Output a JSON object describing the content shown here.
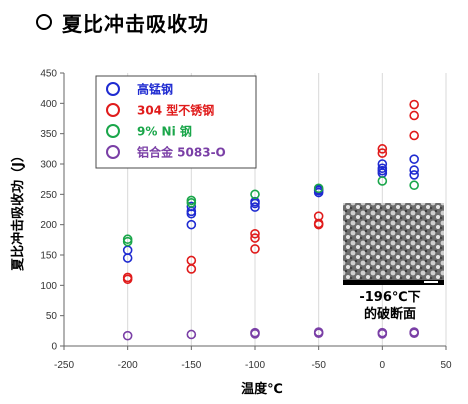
{
  "heading": {
    "title": "夏比冲击吸收功"
  },
  "colors": {
    "high_mn": "#1f2bd1",
    "ss304": "#e01b1b",
    "ni9": "#1aa64a",
    "al5083": "#7a3fa6",
    "axis": "#666666",
    "grid": "#d9d9d9"
  },
  "inset": {
    "caption_line1": "-196℃下",
    "caption_line2": "的破断面"
  },
  "chart_data": {
    "type": "scatter",
    "title": "夏比冲击吸收功",
    "xlabel": "温度℃",
    "ylabel": "夏比冲击吸收功（J）",
    "xlim": [
      -250,
      50
    ],
    "ylim": [
      0,
      450
    ],
    "xticks": [
      -250,
      -200,
      -150,
      -100,
      -50,
      0,
      50
    ],
    "yticks": [
      0,
      50,
      100,
      150,
      200,
      250,
      300,
      350,
      400,
      450
    ],
    "grid": "vertical",
    "legend_position": "top-left",
    "series": [
      {
        "name": "高锰钢",
        "color_key": "high_mn",
        "points": [
          [
            -200,
            158
          ],
          [
            -200,
            145
          ],
          [
            -150,
            230
          ],
          [
            -150,
            222
          ],
          [
            -150,
            218
          ],
          [
            -150,
            200
          ],
          [
            -100,
            238
          ],
          [
            -100,
            235
          ],
          [
            -100,
            229
          ],
          [
            -50,
            258
          ],
          [
            -50,
            256
          ],
          [
            -50,
            253
          ],
          [
            0,
            300
          ],
          [
            0,
            293
          ],
          [
            0,
            289
          ],
          [
            0,
            285
          ],
          [
            25,
            308
          ],
          [
            25,
            290
          ],
          [
            25,
            282
          ]
        ]
      },
      {
        "name": "304 型不锈钢",
        "color_key": "ss304",
        "points": [
          [
            -200,
            113
          ],
          [
            -200,
            110
          ],
          [
            -150,
            141
          ],
          [
            -150,
            127
          ],
          [
            -100,
            185
          ],
          [
            -100,
            178
          ],
          [
            -100,
            160
          ],
          [
            -50,
            214
          ],
          [
            -50,
            202
          ],
          [
            -50,
            200
          ],
          [
            0,
            325
          ],
          [
            0,
            318
          ],
          [
            25,
            398
          ],
          [
            25,
            380
          ],
          [
            25,
            347
          ]
        ]
      },
      {
        "name": "9% Ni 钢",
        "color_key": "ni9",
        "points": [
          [
            -200,
            176
          ],
          [
            -200,
            172
          ],
          [
            -150,
            240
          ],
          [
            -150,
            236
          ],
          [
            -100,
            250
          ],
          [
            -50,
            260
          ],
          [
            0,
            272
          ],
          [
            25,
            265
          ]
        ]
      },
      {
        "name": "铝合金 5083-O",
        "color_key": "al5083",
        "points": [
          [
            -200,
            17
          ],
          [
            -150,
            19
          ],
          [
            -100,
            22
          ],
          [
            -100,
            20
          ],
          [
            -50,
            23
          ],
          [
            -50,
            21
          ],
          [
            0,
            22
          ],
          [
            0,
            20
          ],
          [
            25,
            23
          ],
          [
            25,
            21
          ]
        ]
      }
    ]
  }
}
